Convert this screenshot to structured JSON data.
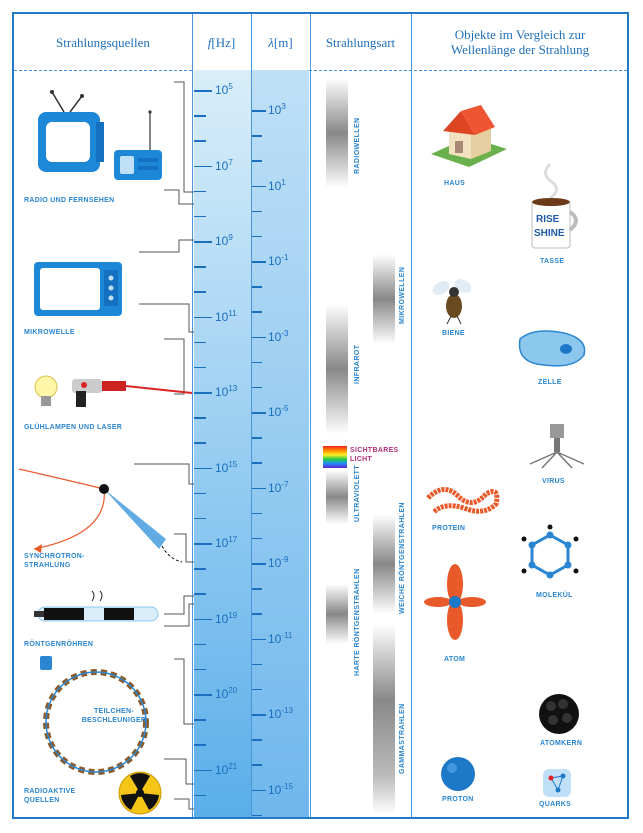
{
  "headers": {
    "sources": "Strahlungsquellen",
    "freq_symbol": "f",
    "freq_unit": "[Hz]",
    "wave_symbol": "λ",
    "wave_unit": "[m]",
    "type": "Strahlungsart",
    "objects": "Objekte im Vergleich zur Wellenlänge der Strahlung"
  },
  "frequency_ticks": [
    {
      "base": "10",
      "exp": "5"
    },
    {
      "base": "10",
      "exp": "7"
    },
    {
      "base": "10",
      "exp": "9"
    },
    {
      "base": "10",
      "exp": "11"
    },
    {
      "base": "10",
      "exp": "13"
    },
    {
      "base": "10",
      "exp": "15"
    },
    {
      "base": "10",
      "exp": "17"
    },
    {
      "base": "10",
      "exp": "19"
    },
    {
      "base": "10",
      "exp": "20"
    },
    {
      "base": "10",
      "exp": "21"
    }
  ],
  "wavelength_ticks": [
    {
      "base": "10",
      "exp": "3"
    },
    {
      "base": "10",
      "exp": "1"
    },
    {
      "base": "10",
      "exp": "-1"
    },
    {
      "base": "10",
      "exp": "-3"
    },
    {
      "base": "10",
      "exp": "-5"
    },
    {
      "base": "10",
      "exp": "-7"
    },
    {
      "base": "10",
      "exp": "-9"
    },
    {
      "base": "10",
      "exp": "-11"
    },
    {
      "base": "10",
      "exp": "-13"
    },
    {
      "base": "10",
      "exp": "-15"
    }
  ],
  "sources": [
    {
      "label": "RADIO UND FERNSEHEN"
    },
    {
      "label": "MIKROWELLE"
    },
    {
      "label": "GLÜHLAMPEN UND LASER"
    },
    {
      "label": "SYNCHROTRON-\nSTRAHLUNG"
    },
    {
      "label": "RÖNTGENRÖHREN"
    },
    {
      "label": "TEILCHEN-\nBESCHLEUNIGER"
    },
    {
      "label": "RADIOAKTIVE\nQUELLEN"
    }
  ],
  "radiation_types": {
    "radio": "RADIOWELLEN",
    "micro": "MIKROWELLEN",
    "infra": "INFRAROT",
    "visible": "SICHTBARES\nLICHT",
    "uv": "ULTRAVIOLETT",
    "soft_x": "WEICHE RÖNTGENSTRAHLEN",
    "hard_x": "HARTE RÖNTGENSTRAHLEN",
    "gamma": "GAMMASTRAHLEN"
  },
  "objects": {
    "haus": "HAUS",
    "tasse": "TASSE",
    "biene": "BIENE",
    "zelle": "ZELLE",
    "virus": "VIRUS",
    "protein": "PROTEIN",
    "molekuel": "MOLEKÜL",
    "atom": "ATOM",
    "atomkern": "ATOMKERN",
    "proton": "PROTON",
    "quarks": "QUARKS",
    "mug_text_1": "RISE",
    "mug_text_2": "SHINE"
  },
  "colors": {
    "accent": "#2478c8",
    "tv_blue": "#1e88d8",
    "laser_red": "#d22",
    "protein_orange": "#e85a2a",
    "radioactive_yellow": "#f5c518"
  }
}
